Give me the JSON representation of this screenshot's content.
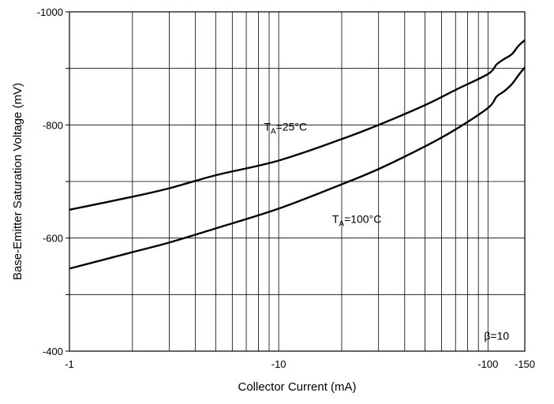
{
  "chart_data": {
    "type": "line",
    "x_scale": "log",
    "y_scale": "linear",
    "xlim": [
      -1,
      -150
    ],
    "ylim": [
      -400,
      -1000
    ],
    "xlabel": "Collector Current (mA)",
    "ylabel": "Base-Emitter Saturation Voltage (mV)",
    "x_tick_labels": [
      {
        "value": -1,
        "label": "-1"
      },
      {
        "value": -10,
        "label": "-10"
      },
      {
        "value": -100,
        "label": "-100"
      },
      {
        "value": -150,
        "label": "-150"
      }
    ],
    "y_tick_labels": [
      {
        "value": -400,
        "label": "-400"
      },
      {
        "value": -600,
        "label": "-600"
      },
      {
        "value": -800,
        "label": "-800"
      },
      {
        "value": -1000,
        "label": "-1000"
      }
    ],
    "grid": true,
    "series": [
      {
        "name_prefix": "T",
        "name_sub": "A",
        "name_suffix": "=25°C",
        "x": [
          -1,
          -2,
          -3,
          -5,
          -10,
          -20,
          -30,
          -50,
          -70,
          -100,
          -110,
          -120,
          -130,
          -140,
          -150
        ],
        "y": [
          -650,
          -673,
          -688,
          -711,
          -737,
          -775,
          -800,
          -835,
          -862,
          -890,
          -907,
          -917,
          -925,
          -940,
          -950
        ]
      },
      {
        "name_prefix": "T",
        "name_sub": "A",
        "name_suffix": "=100°C",
        "x": [
          -1,
          -2,
          -3,
          -5,
          -10,
          -20,
          -30,
          -50,
          -70,
          -100,
          -110,
          -120,
          -130,
          -140,
          -150
        ],
        "y": [
          -546,
          -575,
          -592,
          -617,
          -652,
          -695,
          -722,
          -762,
          -792,
          -830,
          -850,
          -860,
          -872,
          -888,
          -902
        ]
      }
    ],
    "annotations": [
      {
        "text": "β=10"
      }
    ]
  }
}
